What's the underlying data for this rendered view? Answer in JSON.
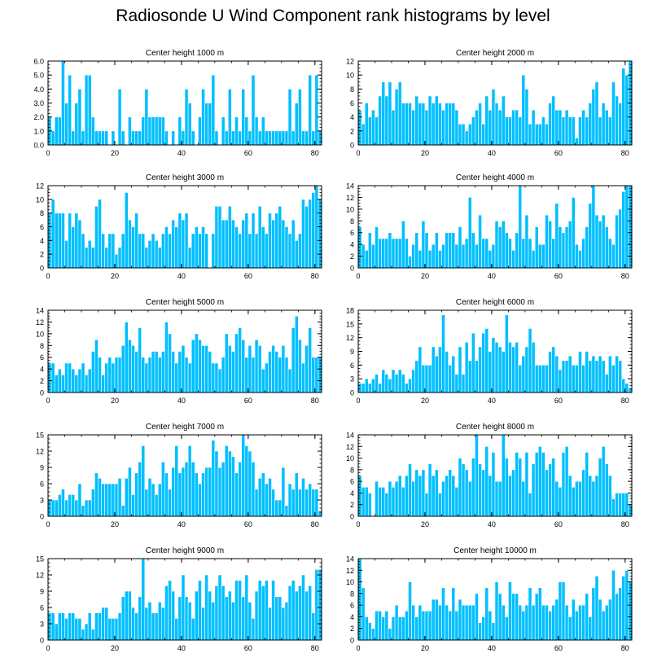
{
  "title": "Radiosonde U Wind Component rank histograms by level",
  "colors": {
    "bar": "#00bfff",
    "bar_edge": "#ffffff",
    "axis": "#000000"
  },
  "chart_data": [
    {
      "type": "bar",
      "title": "Center height 1000 m",
      "xlim": [
        0,
        82
      ],
      "ylim": [
        0,
        6
      ],
      "xticks": [
        0,
        20,
        40,
        60,
        80
      ],
      "yticks": [
        0,
        1,
        2,
        3,
        4,
        5,
        6
      ],
      "ytick_labels": [
        "0.0",
        "1.0",
        "2.0",
        "3.0",
        "4.0",
        "5.0",
        "6.0"
      ],
      "values": [
        2,
        1,
        2,
        2,
        6,
        3,
        5,
        1,
        3,
        4,
        1,
        5,
        5,
        2,
        1,
        1,
        1,
        1,
        0,
        1,
        0,
        4,
        1,
        0,
        2,
        1,
        1,
        1,
        2,
        4,
        2,
        2,
        2,
        2,
        2,
        1,
        0,
        1,
        0,
        2,
        1,
        4,
        3,
        1,
        0,
        2,
        4,
        3,
        3,
        5,
        1,
        0,
        2,
        1,
        4,
        1,
        2,
        1,
        4,
        2,
        1,
        5,
        2,
        1,
        2,
        1,
        1,
        1,
        1,
        1,
        1,
        1,
        4,
        1,
        3,
        4,
        1,
        1,
        5,
        1,
        5,
        1
      ]
    },
    {
      "type": "bar",
      "title": "Center height 2000 m",
      "xlim": [
        0,
        82
      ],
      "ylim": [
        0,
        12
      ],
      "xticks": [
        0,
        20,
        40,
        60,
        80
      ],
      "yticks": [
        0,
        2,
        4,
        6,
        8,
        10,
        12
      ],
      "ytick_labels": [
        "0",
        "2",
        "4",
        "6",
        "8",
        "10",
        "12"
      ],
      "values": [
        5,
        3,
        6,
        4,
        5,
        4,
        7,
        9,
        7,
        9,
        5,
        8,
        9,
        6,
        6,
        6,
        5,
        7,
        6,
        6,
        5,
        7,
        6,
        7,
        6,
        5,
        6,
        6,
        6,
        5,
        3,
        3,
        2,
        3,
        4,
        5,
        6,
        3,
        7,
        5,
        8,
        6,
        5,
        7,
        4,
        4,
        5,
        5,
        4,
        10,
        8,
        3,
        5,
        3,
        3,
        4,
        3,
        6,
        7,
        5,
        5,
        4,
        5,
        4,
        4,
        1,
        4,
        5,
        4,
        6,
        8,
        9,
        4,
        6,
        5,
        4,
        9,
        7,
        6,
        11,
        10,
        12
      ]
    },
    {
      "type": "bar",
      "title": "Center height 3000 m",
      "xlim": [
        0,
        82
      ],
      "ylim": [
        0,
        12
      ],
      "xticks": [
        0,
        20,
        40,
        60,
        80
      ],
      "yticks": [
        0,
        2,
        4,
        6,
        8,
        10,
        12
      ],
      "ytick_labels": [
        "0",
        "2",
        "4",
        "6",
        "8",
        "10",
        "12"
      ],
      "values": [
        8,
        10,
        8,
        8,
        8,
        4,
        8,
        6,
        8,
        7,
        5,
        3,
        4,
        3,
        9,
        10,
        5,
        3,
        5,
        5,
        2,
        3,
        5,
        11,
        7,
        6,
        8,
        5,
        5,
        3,
        4,
        5,
        4,
        3,
        5,
        6,
        5,
        7,
        6,
        8,
        7,
        8,
        3,
        5,
        6,
        5,
        6,
        5,
        0,
        5,
        9,
        9,
        7,
        7,
        9,
        7,
        6,
        5,
        7,
        8,
        5,
        8,
        5,
        9,
        6,
        5,
        8,
        7,
        8,
        9,
        7,
        6,
        5,
        7,
        4,
        5,
        10,
        9,
        10,
        11,
        12,
        10
      ]
    },
    {
      "type": "bar",
      "title": "Center height 4000 m",
      "xlim": [
        0,
        82
      ],
      "ylim": [
        0,
        14
      ],
      "xticks": [
        0,
        20,
        40,
        60,
        80
      ],
      "yticks": [
        0,
        2,
        4,
        6,
        8,
        10,
        12,
        14
      ],
      "ytick_labels": [
        "0",
        "2",
        "4",
        "6",
        "8",
        "10",
        "12",
        "14"
      ],
      "values": [
        7,
        4,
        3,
        6,
        4,
        7,
        5,
        5,
        5,
        6,
        5,
        5,
        5,
        8,
        5,
        2,
        4,
        6,
        3,
        8,
        6,
        3,
        4,
        6,
        3,
        4,
        6,
        6,
        6,
        4,
        7,
        4,
        5,
        12,
        6,
        4,
        9,
        5,
        5,
        3,
        4,
        8,
        7,
        8,
        6,
        5,
        3,
        6,
        14,
        5,
        9,
        5,
        3,
        7,
        4,
        4,
        9,
        8,
        5,
        11,
        7,
        6,
        7,
        8,
        12,
        4,
        3,
        5,
        7,
        11,
        14,
        9,
        8,
        9,
        7,
        5,
        4,
        9,
        10,
        13,
        14,
        14
      ]
    },
    {
      "type": "bar",
      "title": "Center height 5000 m",
      "xlim": [
        0,
        82
      ],
      "ylim": [
        0,
        14
      ],
      "xticks": [
        0,
        20,
        40,
        60,
        80
      ],
      "yticks": [
        0,
        2,
        4,
        6,
        8,
        10,
        12,
        14
      ],
      "ytick_labels": [
        "0",
        "2",
        "4",
        "6",
        "8",
        "10",
        "12",
        "14"
      ],
      "values": [
        5,
        5,
        3,
        4,
        3,
        5,
        5,
        4,
        3,
        4,
        5,
        3,
        4,
        7,
        9,
        6,
        3,
        5,
        6,
        5,
        6,
        6,
        8,
        12,
        9,
        8,
        7,
        11,
        6,
        5,
        6,
        7,
        7,
        6,
        7,
        12,
        10,
        7,
        5,
        7,
        8,
        6,
        5,
        9,
        10,
        9,
        8,
        8,
        7,
        5,
        5,
        4,
        6,
        10,
        8,
        7,
        10,
        11,
        9,
        6,
        8,
        6,
        9,
        8,
        4,
        5,
        7,
        8,
        7,
        6,
        8,
        6,
        4,
        11,
        13,
        9,
        5,
        8,
        11,
        6,
        6,
        6
      ]
    },
    {
      "type": "bar",
      "title": "Center height 6000 m",
      "xlim": [
        0,
        82
      ],
      "ylim": [
        0,
        18
      ],
      "xticks": [
        0,
        20,
        40,
        60,
        80
      ],
      "yticks": [
        0,
        3,
        6,
        9,
        12,
        15,
        18
      ],
      "ytick_labels": [
        "0",
        "3",
        "6",
        "9",
        "12",
        "15",
        "18"
      ],
      "values": [
        2,
        2,
        3,
        2,
        3,
        4,
        2,
        5,
        4,
        3,
        5,
        4,
        5,
        4,
        2,
        3,
        5,
        7,
        10,
        6,
        6,
        6,
        10,
        8,
        10,
        17,
        9,
        6,
        8,
        4,
        10,
        4,
        11,
        7,
        13,
        7,
        10,
        13,
        14,
        9,
        12,
        11,
        10,
        9,
        17,
        11,
        10,
        11,
        6,
        8,
        10,
        14,
        11,
        6,
        6,
        6,
        6,
        9,
        10,
        8,
        5,
        7,
        7,
        8,
        6,
        6,
        9,
        6,
        9,
        7,
        8,
        7,
        8,
        7,
        4,
        8,
        6,
        8,
        7,
        3,
        2,
        1
      ]
    },
    {
      "type": "bar",
      "title": "Center height 7000 m",
      "xlim": [
        0,
        82
      ],
      "ylim": [
        0,
        15
      ],
      "xticks": [
        0,
        20,
        40,
        60,
        80
      ],
      "yticks": [
        0,
        3,
        6,
        9,
        12,
        15
      ],
      "ytick_labels": [
        "0",
        "3",
        "6",
        "9",
        "12",
        "15"
      ],
      "values": [
        3,
        3,
        3,
        4,
        5,
        3,
        4,
        4,
        3,
        6,
        2,
        3,
        3,
        5,
        8,
        7,
        6,
        6,
        6,
        6,
        6,
        7,
        2,
        7,
        9,
        4,
        8,
        10,
        13,
        5,
        7,
        6,
        4,
        6,
        10,
        8,
        5,
        9,
        13,
        8,
        9,
        10,
        13,
        10,
        8,
        6,
        8,
        9,
        9,
        14,
        12,
        9,
        10,
        13,
        12,
        11,
        8,
        10,
        15,
        13,
        12,
        10,
        5,
        7,
        8,
        6,
        7,
        5,
        3,
        3,
        9,
        2,
        6,
        5,
        8,
        5,
        7,
        5,
        6,
        5,
        5,
        1
      ]
    },
    {
      "type": "bar",
      "title": "Center height 8000 m",
      "xlim": [
        0,
        82
      ],
      "ylim": [
        0,
        14
      ],
      "xticks": [
        0,
        20,
        40,
        60,
        80
      ],
      "yticks": [
        0,
        2,
        4,
        6,
        8,
        10,
        12,
        14
      ],
      "ytick_labels": [
        "0",
        "2",
        "4",
        "6",
        "8",
        "10",
        "12",
        "14"
      ],
      "values": [
        7,
        5,
        5,
        4,
        0,
        6,
        5,
        5,
        4,
        6,
        5,
        6,
        7,
        5,
        7,
        9,
        6,
        8,
        7,
        8,
        4,
        9,
        7,
        8,
        4,
        6,
        7,
        8,
        7,
        5,
        10,
        9,
        8,
        6,
        10,
        14,
        9,
        8,
        12,
        7,
        11,
        6,
        6,
        14,
        10,
        7,
        8,
        11,
        10,
        6,
        11,
        4,
        9,
        11,
        12,
        11,
        8,
        9,
        10,
        6,
        5,
        11,
        12,
        7,
        5,
        6,
        6,
        8,
        11,
        7,
        6,
        7,
        10,
        12,
        9,
        7,
        3,
        4,
        4,
        4,
        4,
        2
      ]
    },
    {
      "type": "bar",
      "title": "Center height 9000 m",
      "xlim": [
        0,
        82
      ],
      "ylim": [
        0,
        15
      ],
      "xticks": [
        0,
        20,
        40,
        60,
        80
      ],
      "yticks": [
        0,
        3,
        6,
        9,
        12,
        15
      ],
      "ytick_labels": [
        "0",
        "3",
        "6",
        "9",
        "12",
        "15"
      ],
      "values": [
        5,
        5,
        3,
        5,
        5,
        4,
        5,
        5,
        4,
        4,
        2,
        3,
        5,
        2,
        5,
        5,
        6,
        6,
        4,
        4,
        4,
        5,
        8,
        9,
        9,
        6,
        5,
        8,
        15,
        6,
        7,
        5,
        5,
        7,
        6,
        10,
        11,
        9,
        4,
        8,
        12,
        8,
        7,
        4,
        9,
        11,
        6,
        12,
        9,
        7,
        10,
        12,
        10,
        8,
        9,
        7,
        11,
        11,
        8,
        12,
        7,
        4,
        9,
        11,
        10,
        11,
        6,
        11,
        8,
        8,
        6,
        7,
        10,
        11,
        9,
        10,
        12,
        9,
        10,
        5,
        13,
        13
      ]
    },
    {
      "type": "bar",
      "title": "Center height 10000 m",
      "xlim": [
        0,
        82
      ],
      "ylim": [
        0,
        14
      ],
      "xticks": [
        0,
        20,
        40,
        60,
        80
      ],
      "yticks": [
        0,
        2,
        4,
        6,
        8,
        10,
        12,
        14
      ],
      "ytick_labels": [
        "0",
        "2",
        "4",
        "6",
        "8",
        "10",
        "12",
        "14"
      ],
      "values": [
        14,
        9,
        4,
        3,
        2,
        5,
        5,
        4,
        5,
        2,
        4,
        6,
        4,
        4,
        5,
        10,
        6,
        4,
        6,
        5,
        5,
        5,
        7,
        7,
        6,
        9,
        6,
        5,
        9,
        5,
        7,
        6,
        6,
        6,
        6,
        8,
        3,
        4,
        9,
        5,
        3,
        10,
        8,
        6,
        4,
        10,
        8,
        8,
        6,
        5,
        6,
        9,
        6,
        8,
        9,
        6,
        6,
        5,
        6,
        7,
        10,
        10,
        6,
        4,
        7,
        5,
        6,
        6,
        8,
        4,
        9,
        11,
        7,
        5,
        6,
        7,
        12,
        8,
        9,
        11,
        12,
        10
      ]
    }
  ]
}
